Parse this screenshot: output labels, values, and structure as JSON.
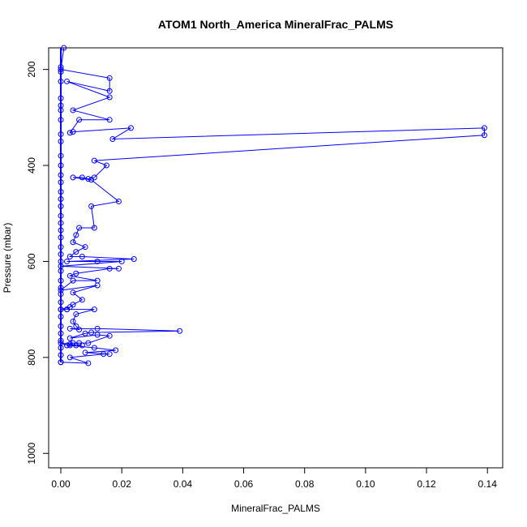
{
  "chart_data": {
    "type": "line",
    "title": "ATOM1 North_America MineralFrac_PALMS",
    "xlabel": "MineralFrac_PALMS",
    "ylabel": "Pressure (mbar)",
    "xlim": [
      -0.004,
      0.145
    ],
    "ylim": [
      1030,
      155
    ],
    "y_reversed": true,
    "x_ticks": [
      "0.00",
      "0.02",
      "0.04",
      "0.06",
      "0.08",
      "0.10",
      "0.12",
      "0.14"
    ],
    "y_ticks": [
      "200",
      "400",
      "600",
      "800",
      "1000"
    ],
    "grid": false,
    "legend": "none",
    "colors": {
      "series": "#0000ff",
      "axes": "#000000",
      "background": "#ffffff"
    },
    "series": [
      {
        "marker": "open-circle",
        "points": [
          [
            0.0,
            810
          ],
          [
            0.0,
            795
          ],
          [
            0.0,
            780
          ],
          [
            0.0,
            765
          ],
          [
            0.0,
            750
          ],
          [
            0.0,
            735
          ],
          [
            0.0,
            715
          ],
          [
            0.0,
            700
          ],
          [
            0.0,
            685
          ],
          [
            0.0,
            668
          ],
          [
            0.0,
            655
          ],
          [
            0.0,
            640
          ],
          [
            0.0,
            620
          ],
          [
            0.0,
            600
          ],
          [
            0.0,
            585
          ],
          [
            0.0,
            570
          ],
          [
            0.0,
            550
          ],
          [
            0.0,
            535
          ],
          [
            0.0,
            520
          ],
          [
            0.0,
            505
          ],
          [
            0.0,
            485
          ],
          [
            0.0,
            470
          ],
          [
            0.0,
            455
          ],
          [
            0.0,
            435
          ],
          [
            0.0,
            420
          ],
          [
            0.0,
            400
          ],
          [
            0.0,
            380
          ],
          [
            0.0,
            350
          ],
          [
            0.0,
            335
          ],
          [
            0.0,
            305
          ],
          [
            0.0,
            285
          ],
          [
            0.0,
            275
          ],
          [
            0.0,
            260
          ],
          [
            0.0,
            225
          ],
          [
            0.0,
            205
          ],
          [
            0.0,
            195
          ]
        ]
      },
      {
        "marker": "open-circle",
        "points": [
          [
            0.0,
            810
          ],
          [
            0.009,
            812
          ],
          [
            0.003,
            800
          ],
          [
            0.014,
            793
          ],
          [
            0.016,
            793
          ],
          [
            0.008,
            790
          ],
          [
            0.018,
            785
          ],
          [
            0.011,
            780
          ],
          [
            0.003,
            775
          ],
          [
            0.007,
            775
          ],
          [
            0.002,
            775
          ],
          [
            0.0,
            770
          ],
          [
            0.005,
            775
          ],
          [
            0.003,
            772
          ],
          [
            0.004,
            770
          ],
          [
            0.006,
            770
          ],
          [
            0.009,
            770
          ],
          [
            0.016,
            755
          ],
          [
            0.012,
            753
          ],
          [
            0.003,
            760
          ],
          [
            0.008,
            750
          ],
          [
            0.01,
            748
          ],
          [
            0.039,
            745
          ],
          [
            0.012,
            740
          ],
          [
            0.003,
            740
          ],
          [
            0.006,
            742
          ],
          [
            0.005,
            735
          ],
          [
            0.004,
            725
          ],
          [
            0.005,
            710
          ],
          [
            0.011,
            700
          ],
          [
            0.002,
            700
          ],
          [
            0.003,
            695
          ],
          [
            0.0,
            700
          ],
          [
            0.002,
            700
          ],
          [
            0.004,
            690
          ],
          [
            0.007,
            680
          ],
          [
            0.004,
            665
          ],
          [
            0.012,
            650
          ],
          [
            0.0,
            660
          ],
          [
            0.004,
            640
          ],
          [
            0.012,
            640
          ],
          [
            0.003,
            630
          ],
          [
            0.005,
            625
          ],
          [
            0.016,
            615
          ],
          [
            0.019,
            615
          ],
          [
            0.0,
            610
          ],
          [
            0.02,
            600
          ],
          [
            0.012,
            600
          ],
          [
            0.002,
            600
          ],
          [
            0.024,
            595
          ],
          [
            0.007,
            590
          ],
          [
            0.003,
            590
          ],
          [
            0.005,
            580
          ],
          [
            0.008,
            570
          ],
          [
            0.004,
            560
          ],
          [
            0.005,
            545
          ],
          [
            0.006,
            530
          ],
          [
            0.011,
            530
          ],
          [
            0.01,
            485
          ],
          [
            0.019,
            475
          ],
          [
            0.01,
            430
          ],
          [
            0.004,
            425
          ],
          [
            0.007,
            425
          ],
          [
            0.009,
            428
          ],
          [
            0.011,
            425
          ],
          [
            0.015,
            400
          ],
          [
            0.011,
            390
          ],
          [
            0.139,
            337
          ],
          [
            0.139,
            322
          ],
          [
            0.017,
            345
          ],
          [
            0.023,
            322
          ],
          [
            0.004,
            330
          ],
          [
            0.003,
            332
          ],
          [
            0.006,
            305
          ],
          [
            0.016,
            305
          ],
          [
            0.004,
            285
          ],
          [
            0.016,
            258
          ],
          [
            0.002,
            225
          ],
          [
            0.016,
            245
          ],
          [
            0.016,
            218
          ],
          [
            0.0,
            200
          ],
          [
            0.001,
            155
          ]
        ]
      }
    ]
  }
}
